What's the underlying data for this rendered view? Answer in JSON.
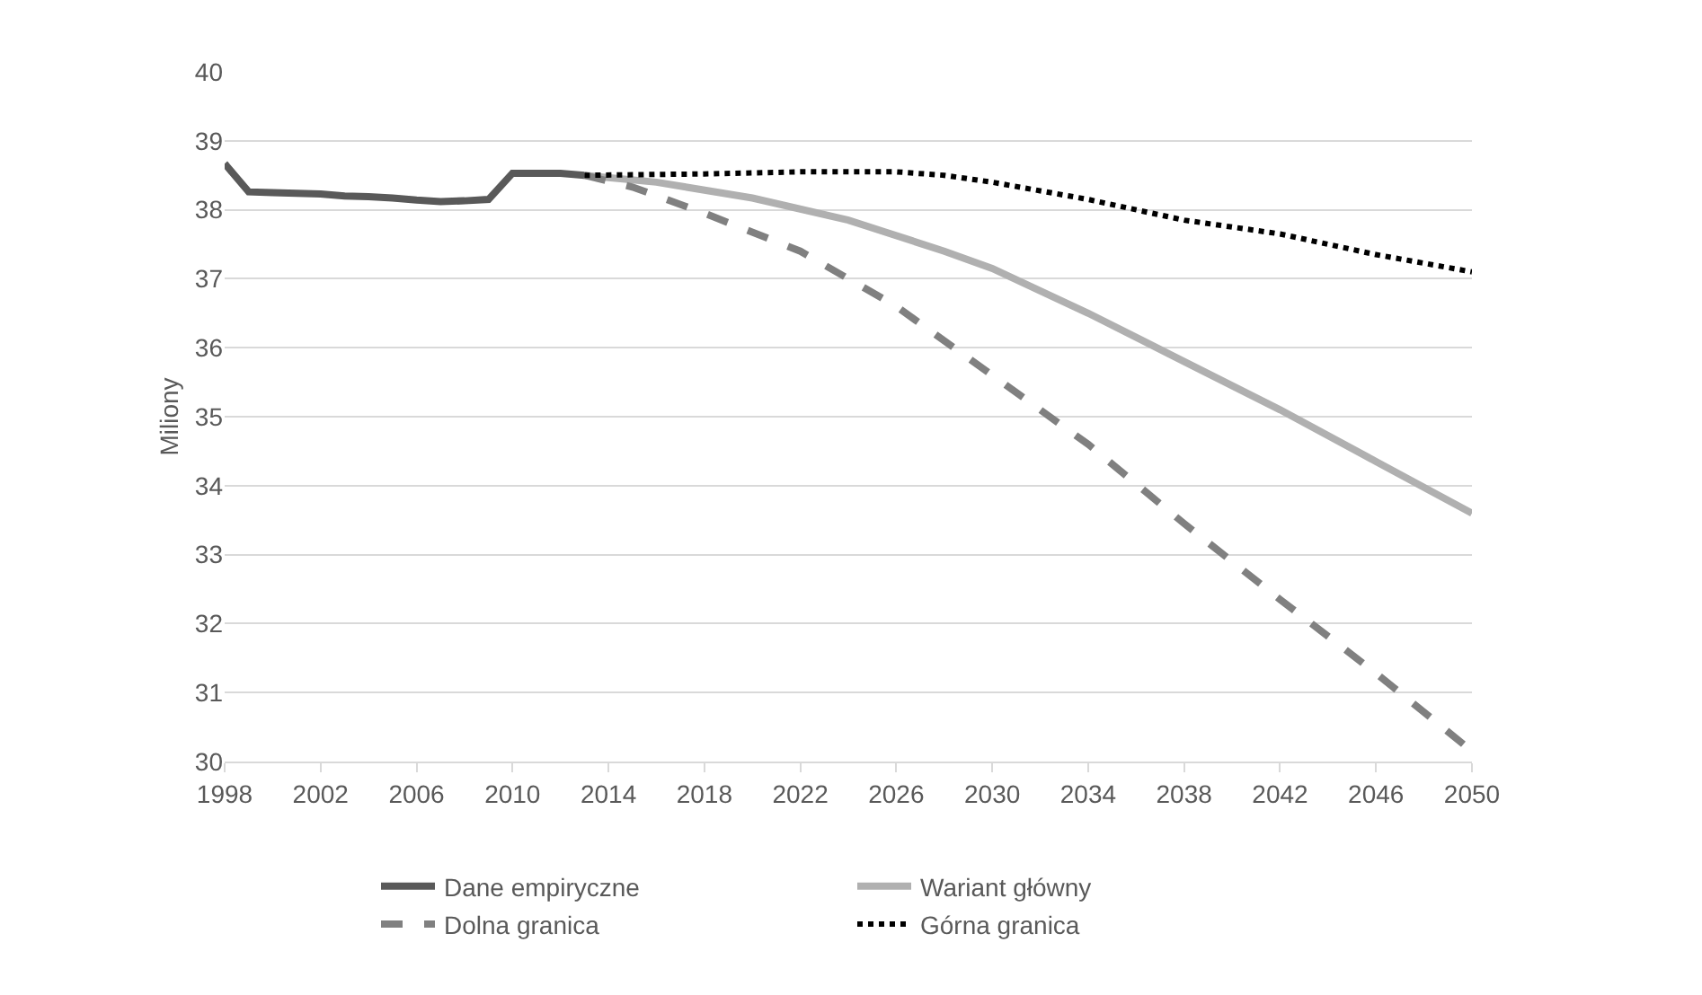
{
  "chart_data": {
    "type": "line",
    "ylabel": "Miliony",
    "xlim": [
      1998,
      2050
    ],
    "xticks": [
      1998,
      2002,
      2006,
      2010,
      2014,
      2018,
      2022,
      2026,
      2030,
      2034,
      2038,
      2042,
      2046,
      2050
    ],
    "ylim": [
      30,
      40
    ],
    "yticks": [
      30,
      31,
      32,
      33,
      34,
      35,
      36,
      37,
      38,
      39,
      40
    ],
    "grid": "y",
    "legend": "bottom",
    "series": [
      {
        "name": "Dane empiryczne",
        "color": "#595959",
        "line_style": "solid",
        "x": [
          1998,
          1999,
          2000,
          2001,
          2002,
          2003,
          2004,
          2005,
          2006,
          2007,
          2008,
          2009,
          2010,
          2011,
          2012,
          2013
        ],
        "values": [
          38.67,
          38.26,
          38.25,
          38.24,
          38.23,
          38.2,
          38.19,
          38.17,
          38.14,
          38.12,
          38.13,
          38.15,
          38.53,
          38.53,
          38.53,
          38.5
        ]
      },
      {
        "name": "Wariant główny",
        "color": "#b0b0b0",
        "line_style": "solid",
        "x": [
          2013,
          2016,
          2020,
          2024,
          2028,
          2030,
          2034,
          2038,
          2042,
          2046,
          2050
        ],
        "values": [
          38.5,
          38.4,
          38.17,
          37.85,
          37.4,
          37.15,
          36.5,
          35.8,
          35.1,
          34.35,
          33.6
        ]
      },
      {
        "name": "Dolna granica",
        "color": "#808080",
        "line_style": "dashed",
        "x": [
          2013,
          2015,
          2018,
          2022,
          2026,
          2030,
          2034,
          2038,
          2042,
          2046,
          2050
        ],
        "values": [
          38.5,
          38.33,
          37.95,
          37.4,
          36.6,
          35.6,
          34.6,
          33.45,
          32.35,
          31.28,
          30.15
        ]
      },
      {
        "name": "Górna granica",
        "color": "#000000",
        "line_style": "dotted",
        "x": [
          2013,
          2018,
          2022,
          2026,
          2028,
          2030,
          2034,
          2038,
          2042,
          2046,
          2050
        ],
        "values": [
          38.5,
          38.52,
          38.55,
          38.55,
          38.5,
          38.4,
          38.15,
          37.85,
          37.65,
          37.35,
          37.1
        ]
      }
    ]
  }
}
